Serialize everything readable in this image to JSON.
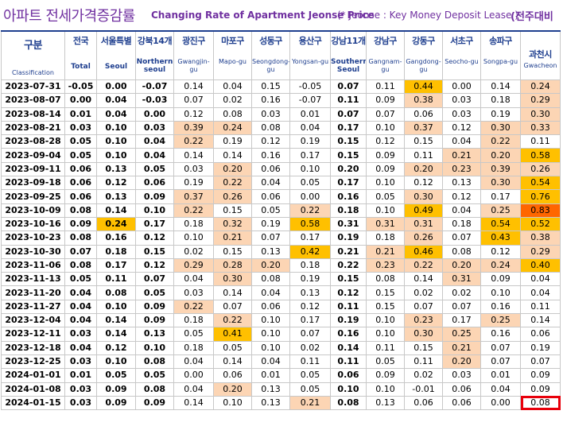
{
  "title": {
    "korean": "아파트 전세가격증감률",
    "english": "Changing Rate of Apartment Jeonse Price",
    "note": "(* Jeonse : Key Money Deposit Lease )",
    "right": "(전주대비"
  },
  "columns": [
    {
      "key": "class",
      "ko": "구분",
      "en": "Classification"
    },
    {
      "key": "total",
      "ko": "전국",
      "en": "Total"
    },
    {
      "key": "seoul",
      "ko": "서울특별",
      "en": "Seoul"
    },
    {
      "key": "north",
      "ko": "강북14개",
      "en": "Northern seoul"
    },
    {
      "key": "gwangjin",
      "ko": "광진구",
      "en": "Gwangjin-gu"
    },
    {
      "key": "mapo",
      "ko": "마포구",
      "en": "Mapo-gu"
    },
    {
      "key": "seongdong",
      "ko": "성동구",
      "en": "Seongdong-gu"
    },
    {
      "key": "yongsan",
      "ko": "용산구",
      "en": "Yongsan-gu"
    },
    {
      "key": "south",
      "ko": "강남11개",
      "en": "Southern Seoul"
    },
    {
      "key": "gangnam",
      "ko": "강남구",
      "en": "Gangnam-gu"
    },
    {
      "key": "gangdong",
      "ko": "강동구",
      "en": "Gangdong-gu"
    },
    {
      "key": "seocho",
      "ko": "서초구",
      "en": "Seocho-gu"
    },
    {
      "key": "songpa",
      "ko": "송파구",
      "en": "Songpa-gu"
    },
    {
      "key": "gwacheon",
      "ko": "과천시",
      "en": "Gwacheon"
    }
  ],
  "rows": [
    {
      "date": "2023-07-31",
      "values": [
        "-0.05",
        "0.00",
        "-0.07",
        "0.14",
        "0.04",
        "0.15",
        "-0.05",
        "0.07",
        "0.11",
        "0.44",
        "0.00",
        "0.14",
        "0.24"
      ]
    },
    {
      "date": "2023-08-07",
      "values": [
        "0.00",
        "0.04",
        "-0.03",
        "0.07",
        "0.02",
        "0.16",
        "-0.07",
        "0.11",
        "0.09",
        "0.38",
        "0.03",
        "0.18",
        "0.29"
      ]
    },
    {
      "date": "2023-08-14",
      "values": [
        "0.01",
        "0.04",
        "0.00",
        "0.12",
        "0.08",
        "0.03",
        "0.01",
        "0.07",
        "0.07",
        "0.06",
        "0.03",
        "0.19",
        "0.30"
      ]
    },
    {
      "date": "2023-08-21",
      "values": [
        "0.03",
        "0.10",
        "0.03",
        "0.39",
        "0.24",
        "0.08",
        "0.04",
        "0.17",
        "0.10",
        "0.37",
        "0.12",
        "0.30",
        "0.33"
      ]
    },
    {
      "date": "2023-08-28",
      "values": [
        "0.05",
        "0.10",
        "0.04",
        "0.22",
        "0.19",
        "0.12",
        "0.19",
        "0.15",
        "0.12",
        "0.15",
        "0.04",
        "0.22",
        "0.11"
      ]
    },
    {
      "date": "2023-09-04",
      "values": [
        "0.05",
        "0.10",
        "0.04",
        "0.14",
        "0.14",
        "0.16",
        "0.17",
        "0.15",
        "0.09",
        "0.11",
        "0.21",
        "0.20",
        "0.58"
      ]
    },
    {
      "date": "2023-09-11",
      "values": [
        "0.06",
        "0.13",
        "0.05",
        "0.03",
        "0.20",
        "0.06",
        "0.10",
        "0.20",
        "0.09",
        "0.20",
        "0.23",
        "0.39",
        "0.26"
      ]
    },
    {
      "date": "2023-09-18",
      "values": [
        "0.06",
        "0.12",
        "0.06",
        "0.19",
        "0.22",
        "0.04",
        "0.05",
        "0.17",
        "0.10",
        "0.12",
        "0.13",
        "0.30",
        "0.54"
      ]
    },
    {
      "date": "2023-09-25",
      "values": [
        "0.06",
        "0.13",
        "0.09",
        "0.37",
        "0.26",
        "0.06",
        "0.00",
        "0.16",
        "0.05",
        "0.30",
        "0.12",
        "0.17",
        "0.76"
      ]
    },
    {
      "date": "2023-10-09",
      "values": [
        "0.08",
        "0.14",
        "0.10",
        "0.22",
        "0.15",
        "0.05",
        "0.22",
        "0.18",
        "0.10",
        "0.49",
        "0.04",
        "0.25",
        "0.83"
      ]
    },
    {
      "date": "2023-10-16",
      "values": [
        "0.09",
        "0.24",
        "0.17",
        "0.18",
        "0.32",
        "0.19",
        "0.58",
        "0.31",
        "0.31",
        "0.31",
        "0.18",
        "0.54",
        "0.52"
      ]
    },
    {
      "date": "2023-10-23",
      "values": [
        "0.08",
        "0.16",
        "0.12",
        "0.10",
        "0.21",
        "0.07",
        "0.17",
        "0.19",
        "0.18",
        "0.26",
        "0.07",
        "0.43",
        "0.38"
      ]
    },
    {
      "date": "2023-10-30",
      "values": [
        "0.07",
        "0.18",
        "0.15",
        "0.02",
        "0.15",
        "0.13",
        "0.42",
        "0.21",
        "0.21",
        "0.46",
        "0.08",
        "0.12",
        "0.29"
      ]
    },
    {
      "date": "2023-11-06",
      "values": [
        "0.08",
        "0.17",
        "0.12",
        "0.29",
        "0.28",
        "0.20",
        "0.18",
        "0.22",
        "0.23",
        "0.22",
        "0.20",
        "0.24",
        "0.40"
      ]
    },
    {
      "date": "2023-11-13",
      "values": [
        "0.05",
        "0.11",
        "0.07",
        "0.04",
        "0.30",
        "0.08",
        "0.19",
        "0.15",
        "0.08",
        "0.14",
        "0.31",
        "0.09",
        "0.04"
      ]
    },
    {
      "date": "2023-11-20",
      "values": [
        "0.04",
        "0.08",
        "0.05",
        "0.03",
        "0.14",
        "0.04",
        "0.13",
        "0.12",
        "0.15",
        "0.02",
        "0.02",
        "0.10",
        "0.04"
      ]
    },
    {
      "date": "2023-11-27",
      "values": [
        "0.04",
        "0.10",
        "0.09",
        "0.22",
        "0.07",
        "0.06",
        "0.12",
        "0.11",
        "0.15",
        "0.07",
        "0.07",
        "0.16",
        "0.11"
      ]
    },
    {
      "date": "2023-12-04",
      "values": [
        "0.04",
        "0.14",
        "0.09",
        "0.18",
        "0.22",
        "0.10",
        "0.17",
        "0.19",
        "0.10",
        "0.23",
        "0.17",
        "0.25",
        "0.14"
      ]
    },
    {
      "date": "2023-12-11",
      "values": [
        "0.03",
        "0.14",
        "0.13",
        "0.05",
        "0.41",
        "0.10",
        "0.07",
        "0.16",
        "0.10",
        "0.30",
        "0.25",
        "0.16",
        "0.06"
      ]
    },
    {
      "date": "2023-12-18",
      "values": [
        "0.04",
        "0.12",
        "0.10",
        "0.18",
        "0.05",
        "0.10",
        "0.02",
        "0.14",
        "0.11",
        "0.15",
        "0.21",
        "0.07",
        "0.19"
      ]
    },
    {
      "date": "2023-12-25",
      "values": [
        "0.03",
        "0.10",
        "0.08",
        "0.04",
        "0.14",
        "0.04",
        "0.11",
        "0.11",
        "0.05",
        "0.11",
        "0.20",
        "0.07",
        "0.07"
      ]
    },
    {
      "date": "2024-01-01",
      "values": [
        "0.01",
        "0.05",
        "0.05",
        "0.00",
        "0.06",
        "0.01",
        "0.05",
        "0.06",
        "0.09",
        "0.02",
        "0.03",
        "0.01",
        "0.09"
      ]
    },
    {
      "date": "2024-01-08",
      "values": [
        "0.03",
        "0.09",
        "0.08",
        "0.04",
        "0.20",
        "0.13",
        "0.05",
        "0.10",
        "0.10",
        "-0.01",
        "0.06",
        "0.04",
        "0.09"
      ]
    },
    {
      "date": "2024-01-15",
      "values": [
        "0.03",
        "0.09",
        "0.09",
        "0.14",
        "0.10",
        "0.13",
        "0.21",
        "0.08",
        "0.13",
        "0.06",
        "0.06",
        "0.00",
        "0.08"
      ]
    }
  ],
  "colors": {
    "heading": "#7030a0",
    "header_text": "#1f3f8f",
    "highlight_light": "#fcd5b4",
    "highlight_gold": "#ffc000",
    "highlight_strong": "#ff6600",
    "box_outline": "#e8000b"
  }
}
